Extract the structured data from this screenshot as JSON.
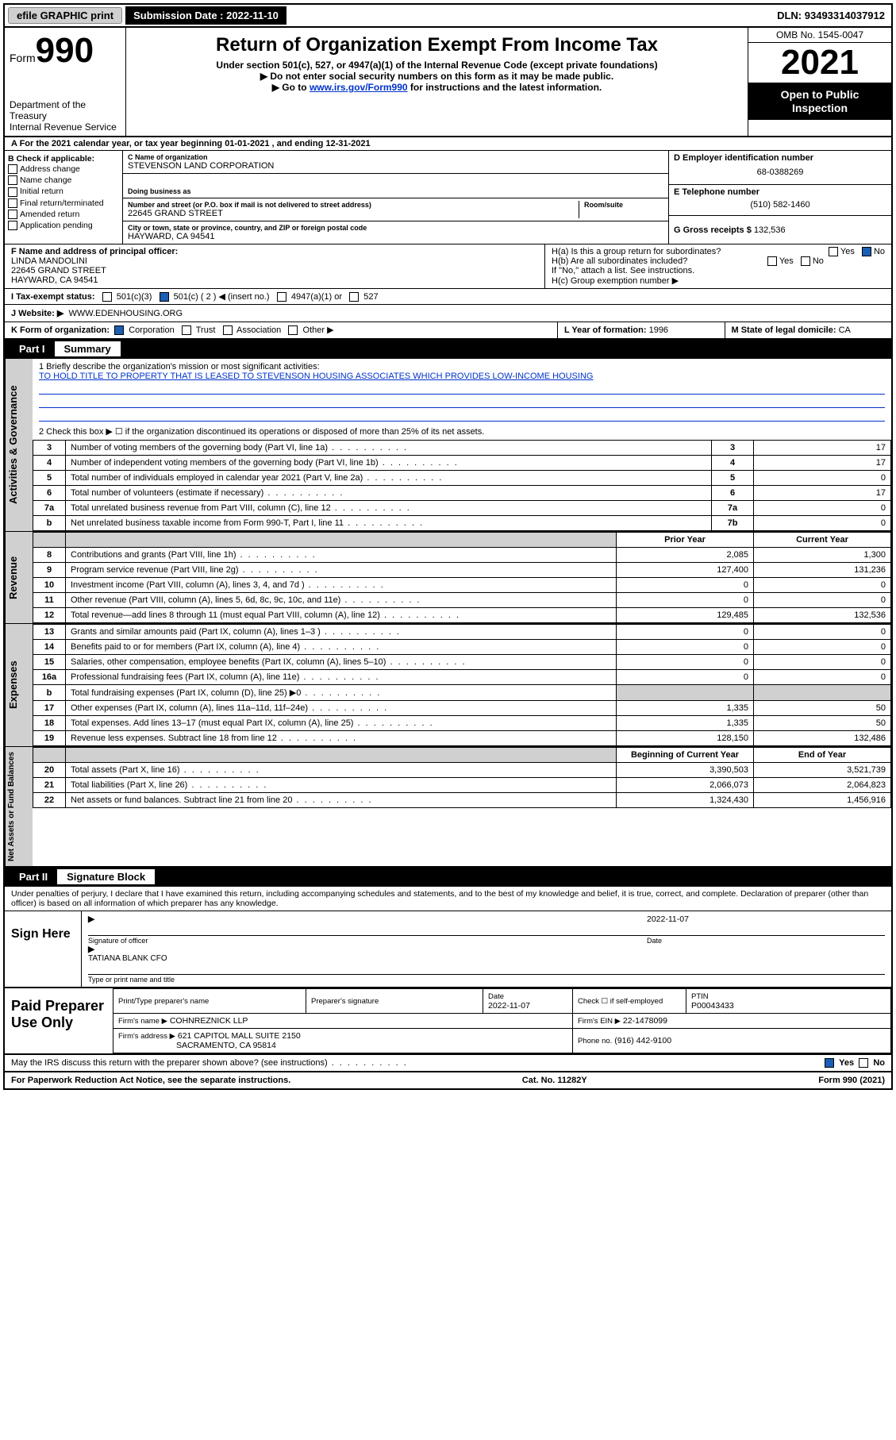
{
  "top_bar": {
    "efile": "efile GRAPHIC print",
    "sub_label": "Submission Date :",
    "sub_date": "2022-11-10",
    "dln_label": "DLN:",
    "dln": "93493314037912"
  },
  "header": {
    "form_word": "Form",
    "form_num": "990",
    "dept": "Department of the Treasury",
    "irs": "Internal Revenue Service",
    "title": "Return of Organization Exempt From Income Tax",
    "sub1": "Under section 501(c), 527, or 4947(a)(1) of the Internal Revenue Code (except private foundations)",
    "sub2": "▶ Do not enter social security numbers on this form as it may be made public.",
    "sub3_pre": "▶ Go to ",
    "sub3_link": "www.irs.gov/Form990",
    "sub3_post": " for instructions and the latest information.",
    "omb": "OMB No. 1545-0047",
    "year": "2021",
    "otp1": "Open to Public",
    "otp2": "Inspection"
  },
  "row_a": "A For the 2021 calendar year, or tax year beginning 01-01-2021    , and ending 12-31-2021",
  "box_b": {
    "label": "B Check if applicable:",
    "items": [
      "Address change",
      "Name change",
      "Initial return",
      "Final return/terminated",
      "Amended return",
      "Application pending"
    ]
  },
  "box_c": {
    "label": "C Name of organization",
    "org": "STEVENSON LAND CORPORATION",
    "dba_label": "Doing business as",
    "addr_label": "Number and street (or P.O. box if mail is not delivered to street address)",
    "room_label": "Room/suite",
    "addr": "22645 GRAND STREET",
    "city_label": "City or town, state or province, country, and ZIP or foreign postal code",
    "city": "HAYWARD, CA  94541"
  },
  "box_d": {
    "label": "D Employer identification number",
    "val": "68-0388269"
  },
  "box_e": {
    "label": "E Telephone number",
    "val": "(510) 582-1460"
  },
  "box_g": {
    "label": "G Gross receipts $",
    "val": "132,536"
  },
  "box_f": {
    "label": "F Name and address of principal officer:",
    "name": "LINDA MANDOLINI",
    "addr": "22645 GRAND STREET",
    "city": "HAYWARD, CA  94541"
  },
  "box_h": {
    "a": "H(a)  Is this a group return for subordinates?",
    "b": "H(b)  Are all subordinates included?",
    "b_note": "If \"No,\" attach a list. See instructions.",
    "c": "H(c)  Group exemption number ▶",
    "yes": "Yes",
    "no": "No"
  },
  "row_i": {
    "label": "I   Tax-exempt status:",
    "opts": [
      "501(c)(3)",
      "501(c) ( 2 ) ◀ (insert no.)",
      "4947(a)(1) or",
      "527"
    ]
  },
  "row_j": {
    "label": "J   Website: ▶",
    "val": "WWW.EDENHOUSING.ORG"
  },
  "row_k": {
    "label": "K Form of organization:",
    "opts": [
      "Corporation",
      "Trust",
      "Association",
      "Other ▶"
    ],
    "l_label": "L Year of formation:",
    "l_val": "1996",
    "m_label": "M State of legal domicile:",
    "m_val": "CA"
  },
  "part1": {
    "num": "Part I",
    "title": "Summary",
    "q1_label": "1  Briefly describe the organization's mission or most significant activities:",
    "q1_text": "TO HOLD TITLE TO PROPERTY THAT IS LEASED TO STEVENSON HOUSING ASSOCIATES WHICH PROVIDES LOW-INCOME HOUSING",
    "q2": "2   Check this box ▶ ☐  if the organization discontinued its operations or disposed of more than 25% of its net assets.",
    "lines_gov": [
      {
        "n": "3",
        "t": "Number of voting members of the governing body (Part VI, line 1a)",
        "box": "3",
        "v": "17"
      },
      {
        "n": "4",
        "t": "Number of independent voting members of the governing body (Part VI, line 1b)",
        "box": "4",
        "v": "17"
      },
      {
        "n": "5",
        "t": "Total number of individuals employed in calendar year 2021 (Part V, line 2a)",
        "box": "5",
        "v": "0"
      },
      {
        "n": "6",
        "t": "Total number of volunteers (estimate if necessary)",
        "box": "6",
        "v": "17"
      },
      {
        "n": "7a",
        "t": "Total unrelated business revenue from Part VIII, column (C), line 12",
        "box": "7a",
        "v": "0"
      },
      {
        "n": "b",
        "t": "Net unrelated business taxable income from Form 990-T, Part I, line 11",
        "box": "7b",
        "v": "0"
      }
    ],
    "col_prior": "Prior Year",
    "col_curr": "Current Year",
    "revenue": [
      {
        "n": "8",
        "t": "Contributions and grants (Part VIII, line 1h)",
        "p": "2,085",
        "c": "1,300"
      },
      {
        "n": "9",
        "t": "Program service revenue (Part VIII, line 2g)",
        "p": "127,400",
        "c": "131,236"
      },
      {
        "n": "10",
        "t": "Investment income (Part VIII, column (A), lines 3, 4, and 7d )",
        "p": "0",
        "c": "0"
      },
      {
        "n": "11",
        "t": "Other revenue (Part VIII, column (A), lines 5, 6d, 8c, 9c, 10c, and 11e)",
        "p": "0",
        "c": "0"
      },
      {
        "n": "12",
        "t": "Total revenue—add lines 8 through 11 (must equal Part VIII, column (A), line 12)",
        "p": "129,485",
        "c": "132,536"
      }
    ],
    "expenses": [
      {
        "n": "13",
        "t": "Grants and similar amounts paid (Part IX, column (A), lines 1–3 )",
        "p": "0",
        "c": "0"
      },
      {
        "n": "14",
        "t": "Benefits paid to or for members (Part IX, column (A), line 4)",
        "p": "0",
        "c": "0"
      },
      {
        "n": "15",
        "t": "Salaries, other compensation, employee benefits (Part IX, column (A), lines 5–10)",
        "p": "0",
        "c": "0"
      },
      {
        "n": "16a",
        "t": "Professional fundraising fees (Part IX, column (A), line 11e)",
        "p": "0",
        "c": "0"
      },
      {
        "n": "b",
        "t": "Total fundraising expenses (Part IX, column (D), line 25) ▶0",
        "p": "",
        "c": "",
        "grey": true
      },
      {
        "n": "17",
        "t": "Other expenses (Part IX, column (A), lines 11a–11d, 11f–24e)",
        "p": "1,335",
        "c": "50"
      },
      {
        "n": "18",
        "t": "Total expenses. Add lines 13–17 (must equal Part IX, column (A), line 25)",
        "p": "1,335",
        "c": "50"
      },
      {
        "n": "19",
        "t": "Revenue less expenses. Subtract line 18 from line 12",
        "p": "128,150",
        "c": "132,486"
      }
    ],
    "col_boy": "Beginning of Current Year",
    "col_eoy": "End of Year",
    "netassets": [
      {
        "n": "20",
        "t": "Total assets (Part X, line 16)",
        "p": "3,390,503",
        "c": "3,521,739"
      },
      {
        "n": "21",
        "t": "Total liabilities (Part X, line 26)",
        "p": "2,066,073",
        "c": "2,064,823"
      },
      {
        "n": "22",
        "t": "Net assets or fund balances. Subtract line 21 from line 20",
        "p": "1,324,430",
        "c": "1,456,916"
      }
    ],
    "tab_gov": "Activities & Governance",
    "tab_rev": "Revenue",
    "tab_exp": "Expenses",
    "tab_net": "Net Assets or Fund Balances"
  },
  "part2": {
    "num": "Part II",
    "title": "Signature Block",
    "decl": "Under penalties of perjury, I declare that I have examined this return, including accompanying schedules and statements, and to the best of my knowledge and belief, it is true, correct, and complete. Declaration of preparer (other than officer) is based on all information of which preparer has any knowledge.",
    "sign_here": "Sign Here",
    "sig_officer": "Signature of officer",
    "sig_date_label": "Date",
    "sig_date": "2022-11-07",
    "name_title": "TATIANA BLANK CFO",
    "name_title_lbl": "Type or print name and title",
    "paid": "Paid Preparer Use Only",
    "p_name_lbl": "Print/Type preparer's name",
    "p_sig_lbl": "Preparer's signature",
    "p_date_lbl": "Date",
    "p_date": "2022-11-07",
    "p_check": "Check ☐ if self-employed",
    "ptin_lbl": "PTIN",
    "ptin": "P00043433",
    "firm_name_lbl": "Firm's name    ▶",
    "firm_name": "COHNREZNICK LLP",
    "firm_ein_lbl": "Firm's EIN ▶",
    "firm_ein": "22-1478099",
    "firm_addr_lbl": "Firm's address ▶",
    "firm_addr1": "621 CAPITOL MALL SUITE 2150",
    "firm_addr2": "SACRAMENTO, CA  95814",
    "phone_lbl": "Phone no.",
    "phone": "(916) 442-9100",
    "may_irs": "May the IRS discuss this return with the preparer shown above? (see instructions)",
    "yes": "Yes",
    "no": "No"
  },
  "footer": {
    "pra": "For Paperwork Reduction Act Notice, see the separate instructions.",
    "cat": "Cat. No. 11282Y",
    "form": "Form 990 (2021)"
  },
  "colors": {
    "link": "#0033cc",
    "grey": "#d0d0d0",
    "check_blue": "#1a5fb4"
  }
}
